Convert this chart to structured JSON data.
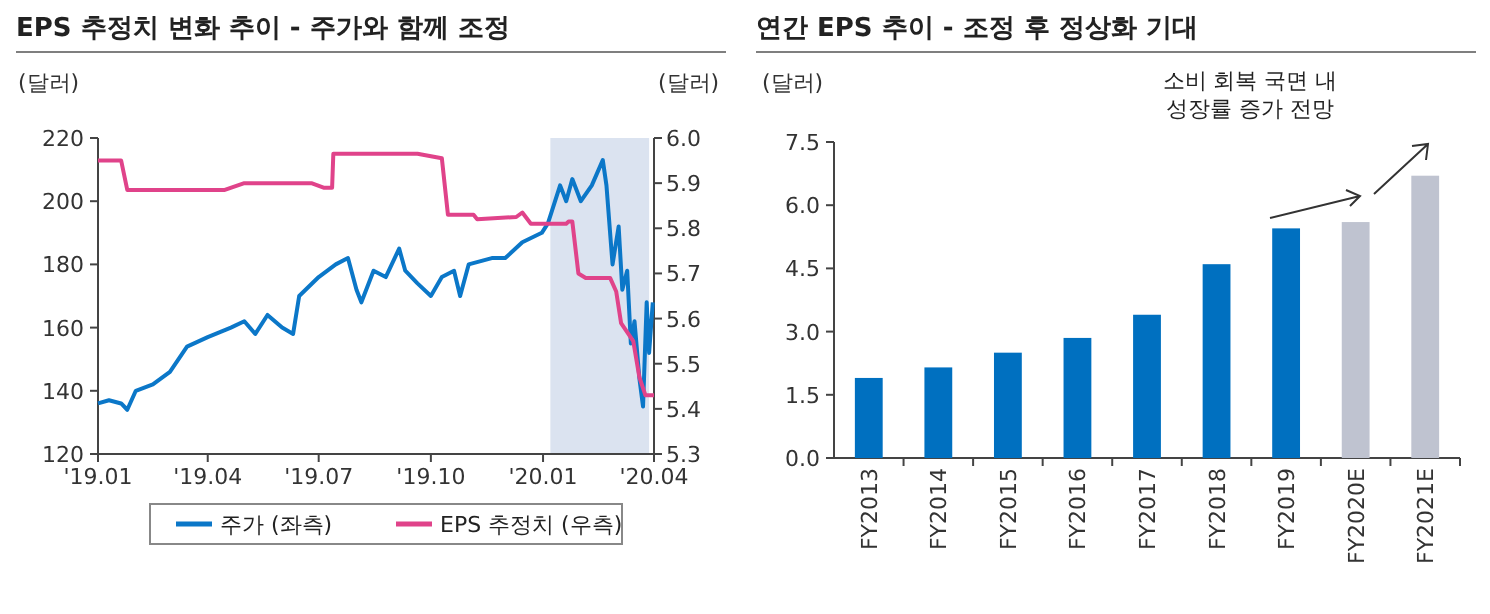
{
  "chart_data": [
    {
      "type": "line",
      "title": "EPS 추정치 변화 추이 - 주가와 함께 조정",
      "ylabel": "(달러)",
      "y2label": "(달러)",
      "xlim": [
        "2019-01-01",
        "2020-04-01"
      ],
      "xticks": [
        {
          "value": "2019-01-01",
          "label": "'19.01"
        },
        {
          "value": "2019-04-01",
          "label": "'19.04"
        },
        {
          "value": "2019-07-01",
          "label": "'19.07"
        },
        {
          "value": "2019-10-01",
          "label": "'19.10"
        },
        {
          "value": "2020-01-01",
          "label": "'20.01"
        },
        {
          "value": "2020-04-01",
          "label": "'20.04"
        }
      ],
      "ylim": [
        120,
        220
      ],
      "yticks": [
        120,
        140,
        160,
        180,
        200,
        220
      ],
      "y2lim": [
        5.3,
        6.0
      ],
      "y2ticks": [
        {
          "value": 5.3,
          "label": "5.3"
        },
        {
          "value": 5.4,
          "label": "5.4"
        },
        {
          "value": 5.5,
          "label": "5.5"
        },
        {
          "value": 5.6,
          "label": "5.6"
        },
        {
          "value": 5.7,
          "label": "5.7"
        },
        {
          "value": 5.8,
          "label": "5.8"
        },
        {
          "value": 5.9,
          "label": "5.9"
        },
        {
          "value": 6.0,
          "label": "6.0"
        }
      ],
      "bands": [
        {
          "axis": "x",
          "from": "2020-01-07",
          "to": "2020-03-28",
          "color": "#dbe3f0"
        }
      ],
      "legend": "bottom",
      "grid": false,
      "series": [
        {
          "name": "주가 (좌측)",
          "color": "#0b77c8",
          "x": [
            "2019-01-01",
            "2019-01-10",
            "2019-01-20",
            "2019-01-25",
            "2019-02-01",
            "2019-02-15",
            "2019-03-01",
            "2019-03-15",
            "2019-04-01",
            "2019-04-20",
            "2019-05-01",
            "2019-05-10",
            "2019-05-20",
            "2019-06-01",
            "2019-06-10",
            "2019-06-15",
            "2019-07-01",
            "2019-07-15",
            "2019-07-25",
            "2019-08-01",
            "2019-08-05",
            "2019-08-15",
            "2019-08-25",
            "2019-09-05",
            "2019-09-10",
            "2019-09-20",
            "2019-10-01",
            "2019-10-10",
            "2019-10-20",
            "2019-10-25",
            "2019-11-01",
            "2019-11-20",
            "2019-12-01",
            "2019-12-15",
            "2019-12-31",
            "2020-01-05",
            "2020-01-15",
            "2020-01-20",
            "2020-01-25",
            "2020-02-01",
            "2020-02-10",
            "2020-02-19",
            "2020-02-22",
            "2020-02-27",
            "2020-03-03",
            "2020-03-06",
            "2020-03-10",
            "2020-03-13",
            "2020-03-16",
            "2020-03-20",
            "2020-03-23",
            "2020-03-26",
            "2020-03-28",
            "2020-03-31"
          ],
          "values": [
            136,
            137,
            136,
            134,
            140,
            142,
            146,
            154,
            157,
            160,
            162,
            158,
            164,
            160,
            158,
            170,
            176,
            180,
            182,
            172,
            168,
            178,
            176,
            185,
            178,
            174,
            170,
            176,
            178,
            170,
            180,
            182,
            182,
            187,
            190,
            193,
            205,
            200,
            207,
            200,
            205,
            213,
            205,
            180,
            192,
            172,
            178,
            155,
            162,
            144,
            135,
            168,
            152,
            168
          ]
        },
        {
          "name": "EPS 추정치 (우측)",
          "color": "#e0438a",
          "axis": "y2",
          "x": [
            "2019-01-01",
            "2019-01-20",
            "2019-01-25",
            "2019-04-15",
            "2019-05-01",
            "2019-06-25",
            "2019-07-05",
            "2019-07-12",
            "2019-07-13",
            "2019-09-20",
            "2019-10-10",
            "2019-10-15",
            "2019-11-05",
            "2019-11-08",
            "2019-12-10",
            "2019-12-15",
            "2019-12-22",
            "2020-01-20",
            "2020-01-22",
            "2020-01-25",
            "2020-01-30",
            "2020-02-05",
            "2020-02-25",
            "2020-03-01",
            "2020-03-05",
            "2020-03-15",
            "2020-03-20",
            "2020-03-25",
            "2020-04-01"
          ],
          "values": [
            5.95,
            5.95,
            5.885,
            5.885,
            5.9,
            5.9,
            5.89,
            5.89,
            5.965,
            5.965,
            5.955,
            5.83,
            5.83,
            5.82,
            5.825,
            5.835,
            5.81,
            5.81,
            5.815,
            5.815,
            5.7,
            5.69,
            5.69,
            5.66,
            5.59,
            5.55,
            5.47,
            5.43,
            5.43
          ]
        }
      ]
    },
    {
      "type": "bar",
      "title": "연간 EPS 추이 - 조정 후 정상화 기대",
      "ylabel": "(달러)",
      "categories": [
        "FY2013",
        "FY2014",
        "FY2015",
        "FY2016",
        "FY2017",
        "FY2018",
        "FY2019",
        "FY2020E",
        "FY2021E"
      ],
      "values": [
        1.9,
        2.15,
        2.5,
        2.85,
        3.4,
        4.6,
        5.45,
        5.6,
        6.7
      ],
      "colors": [
        "#0070c0",
        "#0070c0",
        "#0070c0",
        "#0070c0",
        "#0070c0",
        "#0070c0",
        "#0070c0",
        "#bfc3d0",
        "#bfc3d0"
      ],
      "ylim": [
        0,
        7.5
      ],
      "yticks": [
        {
          "value": 0,
          "label": "0.0"
        },
        {
          "value": 1.5,
          "label": "1.5"
        },
        {
          "value": 3,
          "label": "3.0"
        },
        {
          "value": 4.5,
          "label": "4.5"
        },
        {
          "value": 6,
          "label": "6.0"
        },
        {
          "value": 7.5,
          "label": "7.5"
        }
      ],
      "grid": false,
      "annotations": [
        "소비 회복 국면 내\n성장률 증가 전망"
      ]
    }
  ]
}
